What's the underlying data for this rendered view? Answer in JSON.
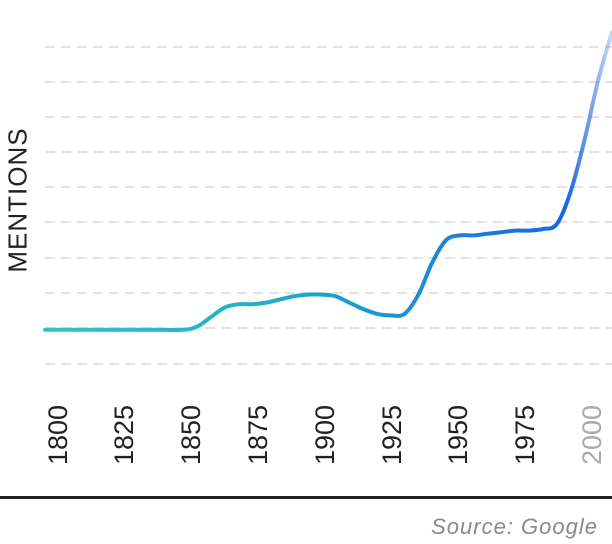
{
  "chart_data": {
    "type": "line",
    "ylabel": "MENTIONS",
    "xlabel": "",
    "x_ticks": [
      "1800",
      "1825",
      "1850",
      "1875",
      "1900",
      "1925",
      "1950",
      "1975",
      "2000"
    ],
    "xlim": [
      1800,
      2005
    ],
    "ylim": [
      0,
      10
    ],
    "grid": true,
    "series": [
      {
        "x": [
          1800,
          1810,
          1820,
          1830,
          1840,
          1850,
          1855,
          1860,
          1865,
          1870,
          1875,
          1880,
          1885,
          1890,
          1895,
          1900,
          1905,
          1910,
          1915,
          1920,
          1925,
          1930,
          1935,
          1940,
          1945,
          1950,
          1955,
          1960,
          1965,
          1970,
          1975,
          1980,
          1985,
          1990,
          1995,
          2000,
          2005
        ],
        "y": [
          1.1,
          1.1,
          1.1,
          1.1,
          1.1,
          1.1,
          1.2,
          1.5,
          1.8,
          1.9,
          1.9,
          1.95,
          2.05,
          2.15,
          2.2,
          2.2,
          2.15,
          1.95,
          1.75,
          1.6,
          1.55,
          1.6,
          2.2,
          3.2,
          3.9,
          4.05,
          4.05,
          4.1,
          4.15,
          4.2,
          4.2,
          4.25,
          4.4,
          5.4,
          7.0,
          8.9,
          10.4
        ]
      }
    ],
    "colors": {
      "line_start": "#2ec4c4",
      "line_mid": "#1a8fd6",
      "line_end": "#1a66e0",
      "grid": "#e3e3e3",
      "axis_text": "#222222",
      "faded_tick": "#aaaaaa"
    }
  },
  "source": "Source: Google"
}
